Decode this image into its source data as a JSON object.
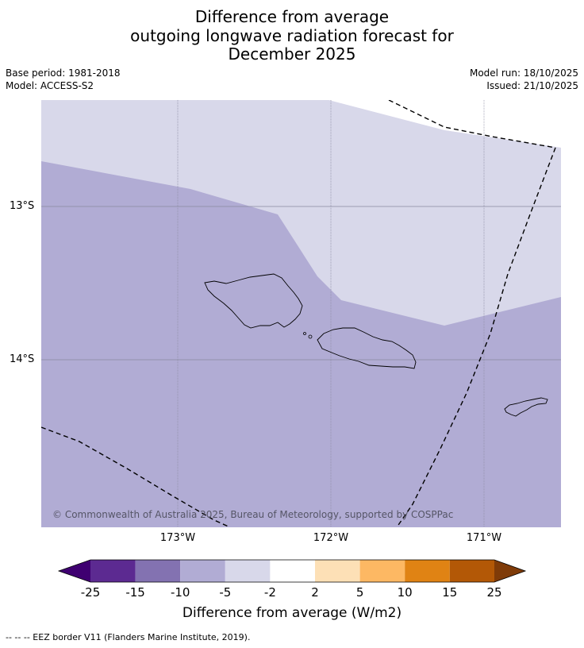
{
  "title": {
    "line1": "Difference from average",
    "line2": "outgoing longwave radiation forecast for",
    "line3": "December 2025"
  },
  "meta": {
    "base_period": "Base period: 1981-2018",
    "model": "Model: ACCESS-S2",
    "model_run": "Model run: 18/10/2025",
    "issued": "Issued: 21/10/2025"
  },
  "map": {
    "lat_labels": [
      "13°S",
      "14°S"
    ],
    "lon_labels": [
      "173°W",
      "172°W",
      "171°W"
    ],
    "credit": "© Commonwealth of Australia 2025, Bureau of Meteorology, supported by COSPPac",
    "colors": {
      "light_band": "#d8d8ea",
      "main_band": "#b1acd4",
      "eez_line": "#000000"
    }
  },
  "colorbar": {
    "title": "Difference from average (W/m2)",
    "tick_labels": [
      "-25",
      "-15",
      "-10",
      "-5",
      "-2",
      "2",
      "5",
      "10",
      "15",
      "25"
    ],
    "colors": [
      "#3f0071",
      "#5c2a91",
      "#8372b1",
      "#b1acd4",
      "#d8d8ea",
      "#ffffff",
      "#fde0b6",
      "#fdb863",
      "#e08314",
      "#b35806",
      "#7f3b08"
    ]
  },
  "footnote": "-- -- -- EEZ border V11 (Flanders Marine Institute, 2019)."
}
